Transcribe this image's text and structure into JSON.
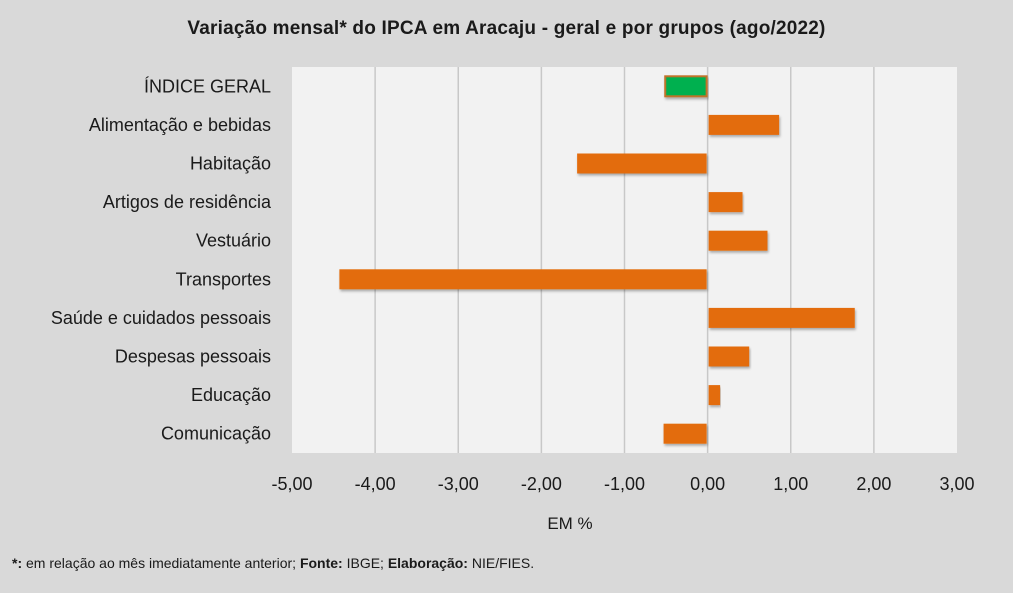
{
  "chart_data": {
    "type": "bar",
    "orientation": "horizontal",
    "title": "Variação mensal* do IPCA em Aracaju - geral e por grupos (ago/2022)",
    "xlabel": "EM %",
    "ylabel": "",
    "xlim": [
      -5,
      3
    ],
    "xticks": [
      -5,
      -4,
      -3,
      -2,
      -1,
      0,
      1,
      2,
      3
    ],
    "xtick_labels": [
      "-5,00",
      "-4,00",
      "-3,00",
      "-2,00",
      "-1,00",
      "0,00",
      "1,00",
      "2,00",
      "3,00"
    ],
    "grid": "vertical",
    "categories": [
      "ÍNDICE GERAL",
      "Alimentação e bebidas",
      "Habitação",
      "Artigos de residência",
      "Vestuário",
      "Transportes",
      "Saúde e cuidados pessoais",
      "Despesas pessoais",
      "Educação",
      "Comunicação"
    ],
    "values": [
      -0.51,
      0.86,
      -1.57,
      0.42,
      0.72,
      -4.43,
      1.77,
      0.5,
      0.15,
      -0.53
    ],
    "highlight_index": 0,
    "colors": {
      "bar": "#e36c0a",
      "highlight": "#00b050",
      "highlight_border": "#c0732b",
      "plot_bg": "#f2f2f2",
      "page_bg": "#d9d9d9",
      "grid": "#c8c8c8"
    }
  },
  "footnote": {
    "marker": "*:",
    "text1": " em relação ao mês imediatamente anterior; ",
    "source_label": "Fonte:",
    "source": " IBGE; ",
    "author_label": "Elaboração:",
    "author": " NIE/FIES."
  }
}
